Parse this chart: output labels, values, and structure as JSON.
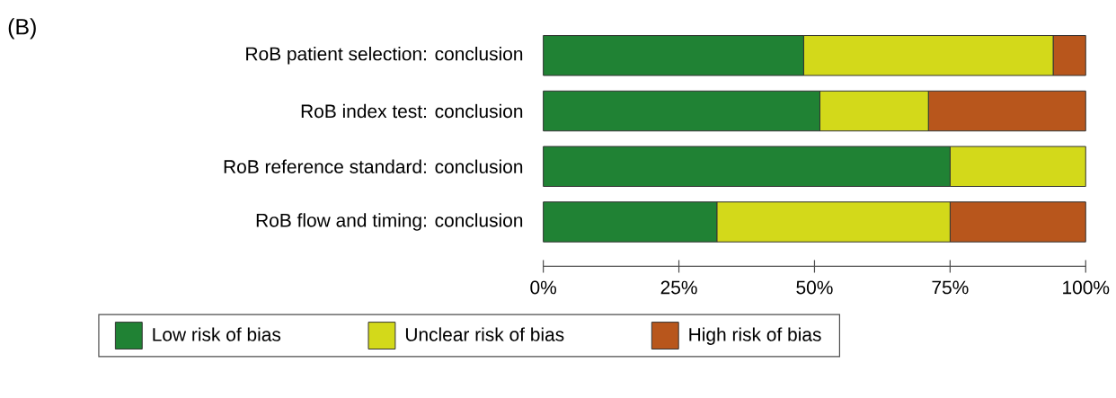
{
  "chart_data": {
    "type": "bar",
    "orientation": "horizontal",
    "stacked": true,
    "title": "(B)",
    "categories": [
      "RoB patient selection: conclusion",
      "RoB index test: conclusion",
      "RoB reference standard: conclusion",
      "RoB flow and timing: conclusion"
    ],
    "series": [
      {
        "name": "Low risk of bias",
        "color": "#208234",
        "values": [
          48,
          51,
          75,
          32
        ]
      },
      {
        "name": "Unclear risk of bias",
        "color": "#d3d91a",
        "values": [
          46,
          20,
          25,
          43
        ]
      },
      {
        "name": "High risk of bias",
        "color": "#b8561c",
        "values": [
          6,
          29,
          0,
          25
        ]
      }
    ],
    "xlim": [
      0,
      100
    ],
    "xticks": [
      {
        "value": 0,
        "label": "0%"
      },
      {
        "value": 25,
        "label": "25%"
      },
      {
        "value": 50,
        "label": "50%"
      },
      {
        "value": 75,
        "label": "75%"
      },
      {
        "value": 100,
        "label": "100%"
      }
    ],
    "legend": "bottom"
  }
}
